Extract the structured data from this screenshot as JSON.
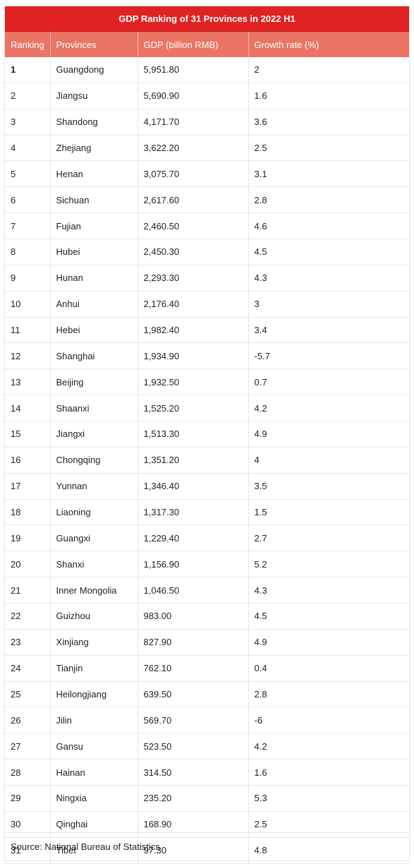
{
  "chart_data": {
    "type": "table",
    "title": "GDP Ranking of 31 Provinces in 2022 H1",
    "columns": [
      "Ranking",
      "Provinces",
      "GDP (billion RMB)",
      "Growth rate (%)"
    ],
    "rows": [
      [
        "1",
        "Guangdong",
        "5,951.80",
        "2"
      ],
      [
        "2",
        "Jiangsu",
        "5,690.90",
        "1.6"
      ],
      [
        "3",
        "Shandong",
        "4,171.70",
        "3.6"
      ],
      [
        "4",
        "Zhejiang",
        "3,622.20",
        "2.5"
      ],
      [
        "5",
        "Henan",
        "3,075.70",
        "3.1"
      ],
      [
        "6",
        "Sichuan",
        "2,617.60",
        "2.8"
      ],
      [
        "7",
        "Fujian",
        "2,460.50",
        "4.6"
      ],
      [
        "8",
        "Hubei",
        "2,450.30",
        "4.5"
      ],
      [
        "9",
        "Hunan",
        "2,293.30",
        "4.3"
      ],
      [
        "10",
        "Anhui",
        "2,176.40",
        "3"
      ],
      [
        "11",
        "Hebei",
        "1,982.40",
        "3.4"
      ],
      [
        "12",
        "Shanghai",
        "1,934.90",
        "-5.7"
      ],
      [
        "13",
        "Beijing",
        "1,932.50",
        "0.7"
      ],
      [
        "14",
        "Shaanxi",
        "1,525.20",
        "4.2"
      ],
      [
        "15",
        "Jiangxi",
        "1,513.30",
        "4.9"
      ],
      [
        "16",
        "Chongqing",
        "1,351.20",
        "4"
      ],
      [
        "17",
        "Yunnan",
        "1,346.40",
        "3.5"
      ],
      [
        "18",
        "Liaoning",
        "1,317.30",
        "1.5"
      ],
      [
        "19",
        "Guangxi",
        "1,229.40",
        "2.7"
      ],
      [
        "20",
        "Shanxi",
        "1,156.90",
        "5.2"
      ],
      [
        "21",
        "Inner Mongolia",
        "1,046.50",
        "4.3"
      ],
      [
        "22",
        "Guizhou",
        "983.00",
        "4.5"
      ],
      [
        "23",
        "Xinjiang",
        "827.90",
        "4.9"
      ],
      [
        "24",
        "Tianjin",
        "762.10",
        "0.4"
      ],
      [
        "25",
        "Heilongjiang",
        "639.50",
        "2.8"
      ],
      [
        "26",
        "Jilin",
        "569.70",
        "-6"
      ],
      [
        "27",
        "Gansu",
        "523.50",
        "4.2"
      ],
      [
        "28",
        "Hainan",
        "314.50",
        "1.6"
      ],
      [
        "29",
        "Ningxia",
        "235.20",
        "5.3"
      ],
      [
        "30",
        "Qinghai",
        "168.90",
        "2.5"
      ],
      [
        "31",
        "Tibet",
        "97.30",
        "4.8"
      ]
    ],
    "source": "Source: National Bureau of Statistics"
  },
  "colors": {
    "title_bar": "#e02322",
    "header_row": "#ea7565",
    "grid": "#e6e6e6"
  }
}
